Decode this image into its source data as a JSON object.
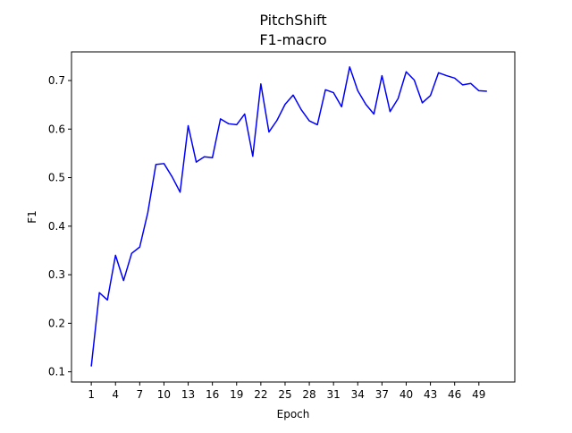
{
  "chart_data": {
    "type": "line",
    "title": "PitchShift",
    "subtitle": "F1-macro",
    "xlabel": "Epoch",
    "ylabel": "F1",
    "xlim": [
      -1.45,
      53.45
    ],
    "ylim": [
      0.079,
      0.759
    ],
    "xticks": [
      1,
      4,
      7,
      10,
      13,
      16,
      19,
      22,
      25,
      28,
      31,
      34,
      37,
      40,
      43,
      46,
      49
    ],
    "yticks": [
      0.1,
      0.2,
      0.3,
      0.4,
      0.5,
      0.6,
      0.7
    ],
    "ytick_labels": [
      "0.1",
      "0.2",
      "0.3",
      "0.4",
      "0.5",
      "0.6",
      "0.7"
    ],
    "grid": false,
    "line_color": "#0000ff",
    "series": [
      {
        "x": [
          1,
          2,
          3,
          4,
          5,
          6,
          7,
          8,
          9,
          10,
          11,
          12,
          13,
          14,
          15,
          16,
          17,
          18,
          19,
          20,
          21,
          22,
          23,
          24,
          25,
          26,
          27,
          28,
          29,
          30,
          31,
          32,
          33,
          34,
          35,
          36,
          37,
          38,
          39,
          40,
          41,
          42,
          43,
          44,
          45,
          46,
          47,
          48,
          49,
          50
        ],
        "values": [
          0.111,
          0.263,
          0.248,
          0.34,
          0.288,
          0.344,
          0.357,
          0.428,
          0.527,
          0.529,
          0.502,
          0.47,
          0.607,
          0.532,
          0.543,
          0.541,
          0.621,
          0.611,
          0.609,
          0.631,
          0.544,
          0.693,
          0.594,
          0.618,
          0.651,
          0.67,
          0.64,
          0.617,
          0.609,
          0.681,
          0.675,
          0.646,
          0.728,
          0.679,
          0.651,
          0.631,
          0.71,
          0.636,
          0.663,
          0.718,
          0.701,
          0.654,
          0.669,
          0.716,
          0.71,
          0.705,
          0.691,
          0.694,
          0.679,
          0.678
        ]
      }
    ]
  }
}
